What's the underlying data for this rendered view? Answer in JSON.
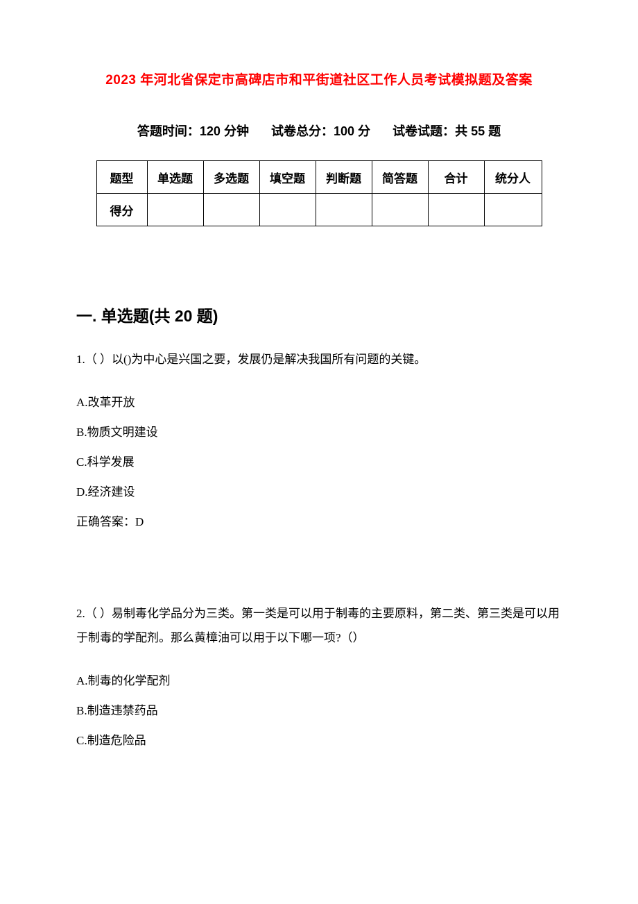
{
  "title": "2023 年河北省保定市高碑店市和平街道社区工作人员考试模拟题及答案",
  "info": {
    "time_label": "答题时间：",
    "time_value": "120 分钟",
    "total_label": "试卷总分：",
    "total_value": "100 分",
    "count_label": "试卷试题：",
    "count_value": "共 55 题"
  },
  "score_table": {
    "row1": [
      "题型",
      "单选题",
      "多选题",
      "填空题",
      "判断题",
      "简答题",
      "合计",
      "统分人"
    ],
    "row2_label": "得分"
  },
  "section1_heading": "一. 单选题(共 20 题)",
  "q1": {
    "text": "1.（ ）以()为中心是兴国之要，发展仍是解决我国所有问题的关键。",
    "optA": "A.改革开放",
    "optB": "B.物质文明建设",
    "optC": "C.科学发展",
    "optD": "D.经济建设",
    "answer": "正确答案：D"
  },
  "q2": {
    "text": "2.（ ）易制毒化学品分为三类。第一类是可以用于制毒的主要原料，第二类、第三类是可以用于制毒的学配剂。那么黄樟油可以用于以下哪一项?（）",
    "optA": "A.制毒的化学配剂",
    "optB": "B.制造违禁药品",
    "optC": "C.制造危险品"
  },
  "colors": {
    "title_color": "#ff0000",
    "text_color": "#000000",
    "background": "#ffffff",
    "border": "#000000"
  }
}
